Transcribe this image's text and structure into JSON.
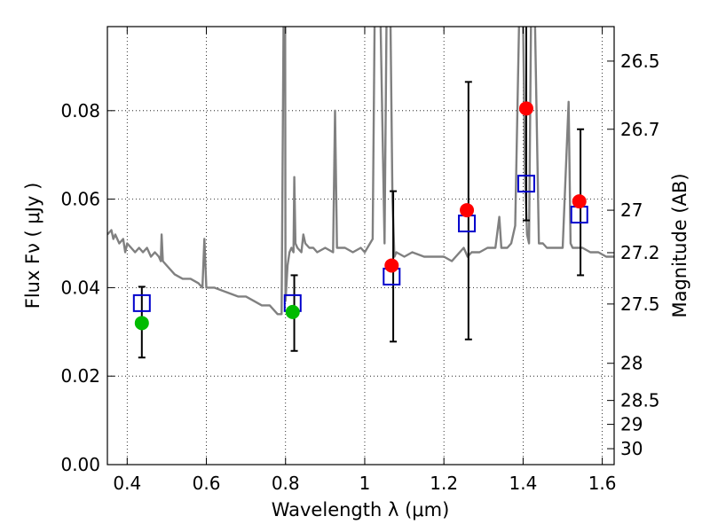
{
  "chart_data": {
    "type": "scatter",
    "xlabel": "Wavelength  λ (μm)",
    "ylabel": "Flux  Fν  ( μJy )",
    "ylabel_right": "Magnitude (AB)",
    "xlim": [
      0.35,
      1.63
    ],
    "ylim": [
      0.0,
      0.099
    ],
    "grid": true,
    "x_ticks": [
      0.4,
      0.6,
      0.8,
      1.0,
      1.2,
      1.4,
      1.6
    ],
    "x_tick_labels": [
      "0.4",
      "0.6",
      "0.8",
      "1",
      "1.2",
      "1.4",
      "1.6"
    ],
    "y_ticks": [
      0.0,
      0.02,
      0.04,
      0.06,
      0.08
    ],
    "y_tick_labels": [
      "0.00",
      "0.02",
      "0.04",
      "0.06",
      "0.08"
    ],
    "mag_ticks": [
      {
        "label": "26.5",
        "flux": 0.0912
      },
      {
        "label": "26.7",
        "flux": 0.0758
      },
      {
        "label": "27",
        "flux": 0.0575
      },
      {
        "label": "27.2",
        "flux": 0.0479
      },
      {
        "label": "27.5",
        "flux": 0.0363
      },
      {
        "label": "28",
        "flux": 0.0229
      },
      {
        "label": "28.5",
        "flux": 0.0145
      },
      {
        "label": "29",
        "flux": 0.0091
      },
      {
        "label": "30",
        "flux": 0.0036
      }
    ],
    "colors": {
      "model": "#808080",
      "model_points": "#0000cc",
      "detections": "#ff0000",
      "optical": "#00bb00",
      "errorbars": "#000000"
    },
    "model_spectrum": {
      "x": [
        0.35,
        0.36,
        0.365,
        0.37,
        0.38,
        0.39,
        0.395,
        0.4,
        0.41,
        0.42,
        0.43,
        0.44,
        0.45,
        0.46,
        0.47,
        0.48,
        0.485,
        0.487,
        0.49,
        0.5,
        0.52,
        0.54,
        0.56,
        0.58,
        0.59,
        0.595,
        0.6,
        0.62,
        0.65,
        0.68,
        0.7,
        0.72,
        0.74,
        0.76,
        0.77,
        0.78,
        0.79,
        0.795,
        0.797,
        0.799,
        0.8,
        0.805,
        0.81,
        0.815,
        0.82,
        0.822,
        0.825,
        0.83,
        0.84,
        0.845,
        0.85,
        0.86,
        0.87,
        0.88,
        0.9,
        0.92,
        0.925,
        0.93,
        0.95,
        0.97,
        0.99,
        1.0,
        1.02,
        1.025,
        1.03,
        1.04,
        1.05,
        1.055,
        1.06,
        1.065,
        1.07,
        1.075,
        1.08,
        1.1,
        1.12,
        1.15,
        1.18,
        1.2,
        1.22,
        1.24,
        1.25,
        1.26,
        1.27,
        1.29,
        1.31,
        1.33,
        1.34,
        1.345,
        1.35,
        1.36,
        1.37,
        1.38,
        1.39,
        1.4,
        1.405,
        1.41,
        1.415,
        1.42,
        1.43,
        1.44,
        1.45,
        1.46,
        1.48,
        1.5,
        1.515,
        1.52,
        1.525,
        1.53,
        1.55,
        1.57,
        1.59,
        1.61,
        1.63
      ],
      "y": [
        0.052,
        0.053,
        0.051,
        0.052,
        0.05,
        0.051,
        0.048,
        0.05,
        0.049,
        0.048,
        0.049,
        0.048,
        0.049,
        0.047,
        0.048,
        0.047,
        0.046,
        0.052,
        0.046,
        0.045,
        0.043,
        0.042,
        0.042,
        0.041,
        0.04,
        0.051,
        0.04,
        0.04,
        0.039,
        0.038,
        0.038,
        0.037,
        0.036,
        0.036,
        0.035,
        0.034,
        0.034,
        0.1,
        0.1,
        0.1,
        0.037,
        0.045,
        0.048,
        0.049,
        0.048,
        0.065,
        0.05,
        0.049,
        0.048,
        0.052,
        0.05,
        0.049,
        0.049,
        0.048,
        0.049,
        0.048,
        0.08,
        0.049,
        0.049,
        0.048,
        0.049,
        0.048,
        0.051,
        0.1,
        0.1,
        0.1,
        0.05,
        0.1,
        0.1,
        0.1,
        0.06,
        0.047,
        0.048,
        0.047,
        0.048,
        0.047,
        0.047,
        0.047,
        0.046,
        0.048,
        0.049,
        0.047,
        0.048,
        0.048,
        0.049,
        0.049,
        0.056,
        0.049,
        0.049,
        0.049,
        0.05,
        0.054,
        0.1,
        0.1,
        0.065,
        0.052,
        0.05,
        0.1,
        0.1,
        0.05,
        0.05,
        0.049,
        0.049,
        0.049,
        0.082,
        0.05,
        0.049,
        0.049,
        0.049,
        0.048,
        0.048,
        0.047,
        0.047
      ]
    },
    "series": [
      {
        "marker": "open-square",
        "x": [
          0.437,
          0.818,
          1.068,
          1.258,
          1.408,
          1.542
        ],
        "y": [
          0.0365,
          0.0365,
          0.0425,
          0.0545,
          0.0635,
          0.0565
        ]
      },
      {
        "marker": "circle",
        "x": [
          0.437,
          0.818
        ],
        "y": [
          0.032,
          0.0345
        ]
      },
      {
        "marker": "circle",
        "x": [
          1.068,
          1.258,
          1.408,
          1.542
        ],
        "y": [
          0.045,
          0.0575,
          0.0805,
          0.0595
        ]
      }
    ],
    "errorbars": [
      {
        "x": 0.437,
        "low": 0.0242,
        "high": 0.0402
      },
      {
        "x": 0.822,
        "low": 0.0257,
        "high": 0.0428
      },
      {
        "x": 1.072,
        "low": 0.0278,
        "high": 0.0618
      },
      {
        "x": 1.262,
        "low": 0.0283,
        "high": 0.0865
      },
      {
        "x": 1.408,
        "low": 0.0552,
        "high": 0.1
      },
      {
        "x": 1.545,
        "low": 0.0428,
        "high": 0.0758
      }
    ]
  }
}
